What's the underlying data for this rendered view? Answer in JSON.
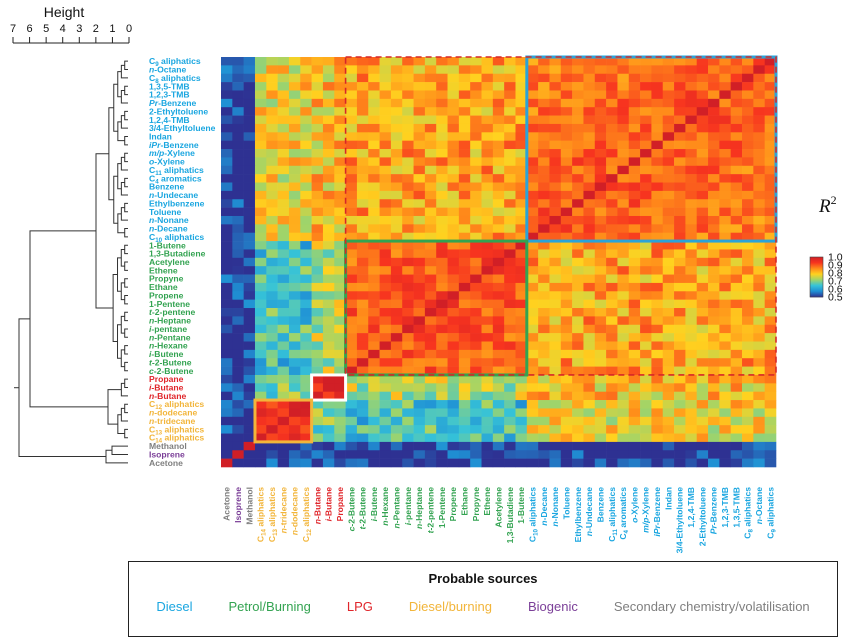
{
  "chart_data": {
    "type": "heatmap",
    "dendrogram_axis_title": "Height",
    "dendrogram_ticks": [
      "7",
      "6",
      "5",
      "4",
      "3",
      "2",
      "1",
      "0"
    ],
    "dendrogram_range": [
      7,
      0
    ],
    "colorbar": {
      "title_base": "R",
      "title_sup": "2",
      "ticks": [
        "1.0",
        "0.9",
        "0.8",
        "0.7",
        "0.6",
        "0.5"
      ],
      "range": [
        0.5,
        1.0
      ],
      "colors": [
        "#2e3192",
        "#1f8fd4",
        "#36c3d8",
        "#9fd46a",
        "#ffd21f",
        "#ff8a1a",
        "#f7341f",
        "#d11f26"
      ]
    },
    "row_labels": [
      {
        "text": "C9 aliphatics",
        "source": "diesel",
        "base": "C",
        "sub": "9",
        "suffix": " aliphatics"
      },
      {
        "text": "n-Octane",
        "source": "diesel",
        "prefix": "n",
        "suffix": "-Octane"
      },
      {
        "text": "C8 aliphatics",
        "source": "diesel",
        "base": "C",
        "sub": "8",
        "suffix": " aliphatics"
      },
      {
        "text": "1,3,5-TMB",
        "source": "diesel"
      },
      {
        "text": "1,2,3-TMB",
        "source": "diesel"
      },
      {
        "text": "Pr-Benzene",
        "source": "diesel",
        "prefix": "Pr",
        "suffix": "-Benzene"
      },
      {
        "text": "2-Ethyltoluene",
        "source": "diesel"
      },
      {
        "text": "1,2,4-TMB",
        "source": "diesel"
      },
      {
        "text": "3/4-Ethyltoluene",
        "source": "diesel"
      },
      {
        "text": "Indan",
        "source": "diesel"
      },
      {
        "text": "iPr-Benzene",
        "source": "diesel",
        "prefix": "iPr",
        "suffix": "-Benzene"
      },
      {
        "text": "m/p-Xylene",
        "source": "diesel",
        "prefix": "m/p",
        "suffix": "-Xylene"
      },
      {
        "text": "o-Xylene",
        "source": "diesel",
        "prefix": "o",
        "suffix": "-Xylene"
      },
      {
        "text": "C11 aliphatics",
        "source": "diesel",
        "base": "C",
        "sub": "11",
        "suffix": " aliphatics"
      },
      {
        "text": "C4 aromatics",
        "source": "diesel",
        "base": "C",
        "sub": "4",
        "suffix": " aromatics"
      },
      {
        "text": "Benzene",
        "source": "diesel"
      },
      {
        "text": "n-Undecane",
        "source": "diesel",
        "prefix": "n",
        "suffix": "-Undecane"
      },
      {
        "text": "Ethylbenzene",
        "source": "diesel"
      },
      {
        "text": "Toluene",
        "source": "diesel"
      },
      {
        "text": "n-Nonane",
        "source": "diesel",
        "prefix": "n",
        "suffix": "-Nonane"
      },
      {
        "text": "n-Decane",
        "source": "diesel",
        "prefix": "n",
        "suffix": "-Decane"
      },
      {
        "text": "C10 aliphatics",
        "source": "diesel",
        "base": "C",
        "sub": "10",
        "suffix": " aliphatics"
      },
      {
        "text": "1-Butene",
        "source": "petrol"
      },
      {
        "text": "1,3-Butadiene",
        "source": "petrol"
      },
      {
        "text": "Acetylene",
        "source": "petrol"
      },
      {
        "text": "Ethene",
        "source": "petrol"
      },
      {
        "text": "Propyne",
        "source": "petrol"
      },
      {
        "text": "Ethane",
        "source": "petrol"
      },
      {
        "text": "Propene",
        "source": "petrol"
      },
      {
        "text": "1-Pentene",
        "source": "petrol"
      },
      {
        "text": "t-2-pentene",
        "source": "petrol",
        "prefix": "t",
        "suffix": "-2-pentene"
      },
      {
        "text": "n-Heptane",
        "source": "petrol",
        "prefix": "n",
        "suffix": "-Heptane"
      },
      {
        "text": "i-pentane",
        "source": "petrol",
        "prefix": "i",
        "suffix": "-pentane"
      },
      {
        "text": "n-Pentane",
        "source": "petrol",
        "prefix": "n",
        "suffix": "-Pentane"
      },
      {
        "text": "n-Hexane",
        "source": "petrol",
        "prefix": "n",
        "suffix": "-Hexane"
      },
      {
        "text": "i-Butene",
        "source": "petrol",
        "prefix": "i",
        "suffix": "-Butene"
      },
      {
        "text": "t-2-Butene",
        "source": "petrol",
        "prefix": "t",
        "suffix": "-2-Butene"
      },
      {
        "text": "c-2-Butene",
        "source": "petrol",
        "prefix": "c",
        "suffix": "-2-Butene"
      },
      {
        "text": "Propane",
        "source": "lpg"
      },
      {
        "text": "i-Butane",
        "source": "lpg",
        "prefix": "i",
        "suffix": "-Butane"
      },
      {
        "text": "n-Butane",
        "source": "lpg",
        "prefix": "n",
        "suffix": "-Butane"
      },
      {
        "text": "C12 aliphatics",
        "source": "dieselburning",
        "base": "C",
        "sub": "12",
        "suffix": " aliphatics"
      },
      {
        "text": "n-dodecane",
        "source": "dieselburning",
        "prefix": "n",
        "suffix": "-dodecane"
      },
      {
        "text": "n-tridecane",
        "source": "dieselburning",
        "prefix": "n",
        "suffix": "-tridecane"
      },
      {
        "text": "C13 aliphatics",
        "source": "dieselburning",
        "base": "C",
        "sub": "13",
        "suffix": " aliphatics"
      },
      {
        "text": "C14 aliphatics",
        "source": "dieselburning",
        "base": "C",
        "sub": "14",
        "suffix": " aliphatics"
      },
      {
        "text": "Methanol",
        "source": "secondary"
      },
      {
        "text": "Isoprene",
        "source": "biogenic"
      },
      {
        "text": "Acetone",
        "source": "secondary"
      }
    ],
    "col_labels": [
      {
        "text": "Acetone",
        "source": "secondary"
      },
      {
        "text": "Isoprene",
        "source": "biogenic"
      },
      {
        "text": "Methanol",
        "source": "secondary"
      },
      {
        "text": "C14 aliphatics",
        "source": "dieselburning",
        "base": "C",
        "sub": "14",
        "suffix": " aliphatics"
      },
      {
        "text": "C13 aliphatics",
        "source": "dieselburning",
        "base": "C",
        "sub": "13",
        "suffix": " aliphatics"
      },
      {
        "text": "n-tridecane",
        "source": "dieselburning",
        "prefix": "n",
        "suffix": "-tridecane"
      },
      {
        "text": "n-dodecane",
        "source": "dieselburning",
        "prefix": "n",
        "suffix": "-dodecane"
      },
      {
        "text": "C12 aliphatics",
        "source": "dieselburning",
        "base": "C",
        "sub": "12",
        "suffix": " aliphatics"
      },
      {
        "text": "n-Butane",
        "source": "lpg",
        "prefix": "n",
        "suffix": "-Butane"
      },
      {
        "text": "i-Butane",
        "source": "lpg",
        "prefix": "i",
        "suffix": "-Butane"
      },
      {
        "text": "Propane",
        "source": "lpg"
      },
      {
        "text": "c-2-Butene",
        "source": "petrol",
        "prefix": "c",
        "suffix": "-2-Butene"
      },
      {
        "text": "t-2-Butene",
        "source": "petrol",
        "prefix": "t",
        "suffix": "-2-Butene"
      },
      {
        "text": "i-Butene",
        "source": "petrol",
        "prefix": "i",
        "suffix": "-Butene"
      },
      {
        "text": "n-Hexane",
        "source": "petrol",
        "prefix": "n",
        "suffix": "-Hexane"
      },
      {
        "text": "n-Pentane",
        "source": "petrol",
        "prefix": "n",
        "suffix": "-Pentane"
      },
      {
        "text": "i-pentane",
        "source": "petrol",
        "prefix": "i",
        "suffix": "-pentane"
      },
      {
        "text": "n-Heptane",
        "source": "petrol",
        "prefix": "n",
        "suffix": "-Heptane"
      },
      {
        "text": "t-2-pentene",
        "source": "petrol",
        "prefix": "t",
        "suffix": "-2-pentene"
      },
      {
        "text": "1-Pentene",
        "source": "petrol"
      },
      {
        "text": "Propene",
        "source": "petrol"
      },
      {
        "text": "Ethane",
        "source": "petrol"
      },
      {
        "text": "Propyne",
        "source": "petrol"
      },
      {
        "text": "Ethene",
        "source": "petrol"
      },
      {
        "text": "Acetylene",
        "source": "petrol"
      },
      {
        "text": "1,3-Butadiene",
        "source": "petrol"
      },
      {
        "text": "1-Butene",
        "source": "petrol"
      },
      {
        "text": "C10 aliphatics",
        "source": "diesel",
        "base": "C",
        "sub": "10",
        "suffix": " aliphatics"
      },
      {
        "text": "n-Decane",
        "source": "diesel",
        "prefix": "n",
        "suffix": "-Decane"
      },
      {
        "text": "n-Nonane",
        "source": "diesel",
        "prefix": "n",
        "suffix": "-Nonane"
      },
      {
        "text": "Toluene",
        "source": "diesel"
      },
      {
        "text": "Ethylbenzene",
        "source": "diesel"
      },
      {
        "text": "n-Undecane",
        "source": "diesel",
        "prefix": "n",
        "suffix": "-Undecane"
      },
      {
        "text": "Benzene",
        "source": "diesel"
      },
      {
        "text": "C11 aliphatics",
        "source": "diesel",
        "base": "C",
        "sub": "11",
        "suffix": " aliphatics"
      },
      {
        "text": "C4 aromatics",
        "source": "diesel",
        "base": "C",
        "sub": "4",
        "suffix": " aromatics"
      },
      {
        "text": "o-Xylene",
        "source": "diesel",
        "prefix": "o",
        "suffix": "-Xylene"
      },
      {
        "text": "m/p-Xylene",
        "source": "diesel",
        "prefix": "m/p",
        "suffix": "-Xylene"
      },
      {
        "text": "iPr-Benzene",
        "source": "diesel",
        "prefix": "iPr",
        "suffix": "-Benzene"
      },
      {
        "text": "Indan",
        "source": "diesel"
      },
      {
        "text": "3/4-Ethyltoluene",
        "source": "diesel"
      },
      {
        "text": "1,2,4-TMB",
        "source": "diesel"
      },
      {
        "text": "2-Ethyltoluene",
        "source": "diesel"
      },
      {
        "text": "Pr-Benzene",
        "source": "diesel",
        "prefix": "Pr",
        "suffix": "-Benzene"
      },
      {
        "text": "1,2,3-TMB",
        "source": "diesel"
      },
      {
        "text": "1,3,5-TMB",
        "source": "diesel"
      },
      {
        "text": "C8 aliphatics",
        "source": "diesel",
        "base": "C",
        "sub": "8",
        "suffix": " aliphatics"
      },
      {
        "text": "n-Octane",
        "source": "diesel",
        "prefix": "n",
        "suffix": "-Octane"
      },
      {
        "text": "C9 aliphatics",
        "source": "diesel",
        "base": "C",
        "sub": "9",
        "suffix": " aliphatics"
      }
    ],
    "blocks": [
      {
        "name": "diesel",
        "size": 22,
        "within": 0.9
      },
      {
        "name": "petrol",
        "size": 16,
        "within": 0.91
      },
      {
        "name": "lpg",
        "size": 3,
        "within": 0.96
      },
      {
        "name": "dieselburning",
        "size": 5,
        "within": 0.95
      },
      {
        "name": "secondary",
        "size": 1,
        "within": 1.0
      },
      {
        "name": "biogenic",
        "size": 1,
        "within": 1.0
      },
      {
        "name": "secondary",
        "size": 1,
        "within": 1.0
      }
    ],
    "block_cross_r2": {
      "diesel-petrol": 0.83,
      "diesel-lpg": 0.8,
      "diesel-dieselburning": 0.78,
      "petrol-lpg": 0.74,
      "petrol-dieselburning": 0.65,
      "lpg-dieselburning": 0.68,
      "other": 0.5
    },
    "highlight_boxes": [
      {
        "name": "diesel-cluster",
        "color": "#2aa3d8",
        "style": "solid"
      },
      {
        "name": "petrol-cluster",
        "color": "#33a351",
        "style": "solid"
      },
      {
        "name": "lpg-cluster",
        "color": "#ffffff",
        "style": "solid"
      },
      {
        "name": "diesel-burning-cluster",
        "color": "#f2b53a",
        "style": "solid"
      },
      {
        "name": "diesel-petrol-cluster",
        "color": "#d62728",
        "style": "dashed"
      }
    ]
  },
  "source_colors": {
    "diesel": "#1aa6e0",
    "petrol": "#33a351",
    "lpg": "#e0262b",
    "dieselburning": "#f2b53a",
    "biogenic": "#7b3f98",
    "secondary": "#7f7f7f"
  },
  "legend": {
    "title": "Probable sources",
    "items": [
      {
        "label": "Diesel",
        "source": "diesel"
      },
      {
        "label": "Petrol/Burning",
        "source": "petrol"
      },
      {
        "label": "LPG",
        "source": "lpg"
      },
      {
        "label": "Diesel/burning",
        "source": "dieselburning"
      },
      {
        "label": "Biogenic",
        "source": "biogenic"
      },
      {
        "label": "Secondary chemistry/volatilisation",
        "source": "secondary"
      }
    ]
  }
}
